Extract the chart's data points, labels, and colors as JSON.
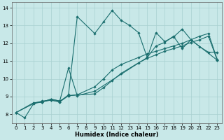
{
  "xlabel": "Humidex (Indice chaleur)",
  "bg_color": "#c8e8e8",
  "grid_color": "#a8d0d0",
  "line_color": "#1a6e6e",
  "xlim": [
    -0.5,
    23.5
  ],
  "ylim": [
    7.5,
    14.3
  ],
  "yticks": [
    8,
    9,
    10,
    11,
    12,
    13,
    14
  ],
  "xticks": [
    0,
    1,
    2,
    3,
    4,
    5,
    6,
    7,
    8,
    9,
    10,
    11,
    12,
    13,
    14,
    15,
    16,
    17,
    18,
    19,
    20,
    21,
    22,
    23
  ],
  "s1x": [
    0,
    1,
    2,
    3,
    4,
    5,
    6,
    7,
    9,
    10,
    11,
    12,
    13,
    14,
    15,
    16,
    17,
    18,
    19,
    20,
    21,
    22,
    23
  ],
  "s1y": [
    8.1,
    7.8,
    8.6,
    8.7,
    8.8,
    8.7,
    9.1,
    13.5,
    12.55,
    13.2,
    13.85,
    13.3,
    13.0,
    12.6,
    11.2,
    12.6,
    12.1,
    12.35,
    12.8,
    12.2,
    11.8,
    11.5,
    11.5
  ],
  "s2x": [
    0,
    2,
    3,
    4,
    5,
    6,
    7,
    9,
    10,
    11,
    12,
    14,
    15,
    16,
    17,
    18,
    19,
    20,
    21,
    22,
    23
  ],
  "s2y": [
    8.1,
    8.65,
    8.7,
    8.85,
    8.75,
    9.05,
    9.1,
    9.55,
    10.0,
    10.5,
    10.8,
    11.2,
    11.4,
    11.55,
    11.7,
    11.85,
    12.0,
    12.2,
    12.4,
    12.55,
    11.1
  ],
  "s3x": [
    0,
    2,
    3,
    4,
    5,
    6,
    9,
    10,
    11,
    12,
    14,
    15,
    16,
    17,
    18,
    19,
    20,
    21,
    22,
    23
  ],
  "s3y": [
    8.1,
    8.6,
    8.75,
    8.8,
    8.7,
    9.05,
    9.15,
    9.5,
    9.9,
    10.3,
    10.9,
    11.15,
    11.35,
    11.55,
    11.7,
    11.85,
    12.05,
    12.2,
    12.4,
    11.05
  ],
  "s4x": [
    2,
    3,
    4,
    5,
    6,
    7,
    9,
    15,
    16,
    17,
    18,
    19,
    20,
    23
  ],
  "s4y": [
    8.65,
    8.7,
    8.85,
    8.75,
    10.6,
    9.05,
    9.3,
    11.2,
    11.85,
    12.05,
    12.4,
    11.7,
    12.2,
    11.05
  ]
}
